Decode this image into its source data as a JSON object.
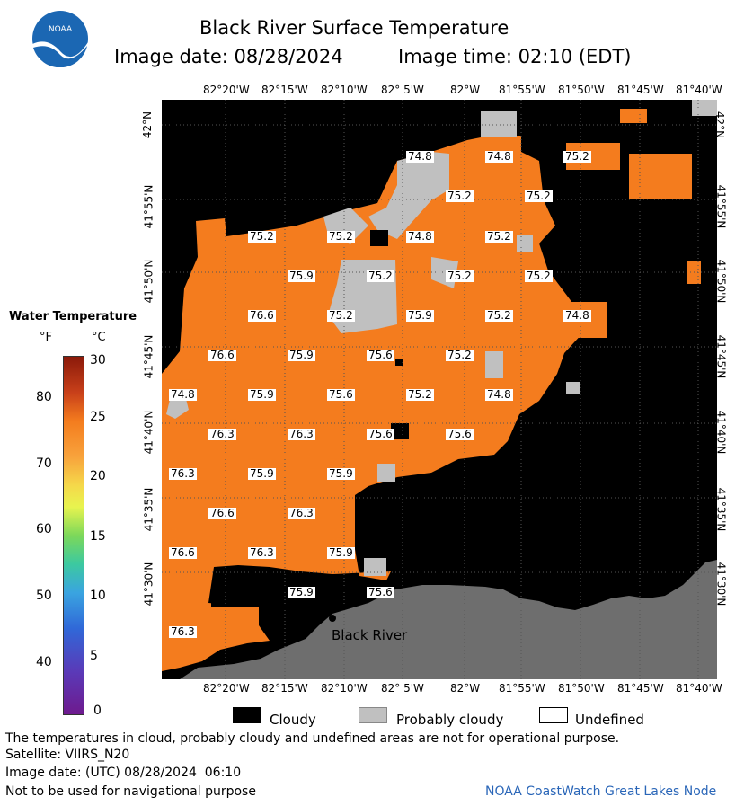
{
  "header": {
    "title": "Black River Surface Temperature",
    "image_date_label": "Image date: 08/28/2024",
    "image_time_label": "Image time: 02:10 (EDT)",
    "logo_text": "NOAA"
  },
  "map": {
    "lon_labels": [
      "82°20'W",
      "82°15'W",
      "82°10'W",
      "82° 5'W",
      "82°W",
      "81°55'W",
      "81°50'W",
      "81°45'W",
      "81°40'W"
    ],
    "lat_labels": [
      "42°N",
      "41°55'N",
      "41°50'N",
      "41°45'N",
      "41°40'N",
      "41°35'N",
      "41°30'N"
    ],
    "place_label": "Black River",
    "temperature_labels": [
      "74.8",
      "74.8",
      "75.2",
      "75.2",
      "75.2",
      "75.2",
      "75.2",
      "74.8",
      "75.2",
      "75.9",
      "75.2",
      "75.2",
      "75.2",
      "76.6",
      "75.2",
      "75.9",
      "75.2",
      "74.8",
      "76.6",
      "75.9",
      "75.6",
      "75.2",
      "74.8",
      "75.9",
      "75.6",
      "75.2",
      "74.8",
      "76.3",
      "76.3",
      "75.6",
      "75.6",
      "76.3",
      "75.9",
      "75.9",
      "76.6",
      "76.3",
      "76.6",
      "76.3",
      "75.9",
      "75.9",
      "75.6",
      "76.3"
    ],
    "colors": {
      "land": "#6e6e6e",
      "cloud": "#000000",
      "probably_cloudy": "#c0c0c0",
      "water_warm": "#f47c1e"
    }
  },
  "colorbar": {
    "title": "Water Temperature",
    "unit_f": "°F",
    "unit_c": "°C",
    "f_ticks": [
      "80",
      "70",
      "60",
      "50",
      "40"
    ],
    "c_ticks": [
      "30",
      "25",
      "20",
      "15",
      "10",
      "5",
      "0"
    ]
  },
  "legend": {
    "cloudy": "Cloudy",
    "probably_cloudy": "Probably cloudy",
    "undefined": "Undefined"
  },
  "footer": {
    "disclaimer": "The temperatures in cloud, probably cloudy and undefined areas are not for operational purpose.",
    "satellite": "Satellite: VIIRS_N20",
    "utc_date": "Image date: (UTC) 08/28/2024  06:10",
    "nav_warning": "Not to be used for navigational purpose",
    "credit": "NOAA CoastWatch Great Lakes Node"
  }
}
